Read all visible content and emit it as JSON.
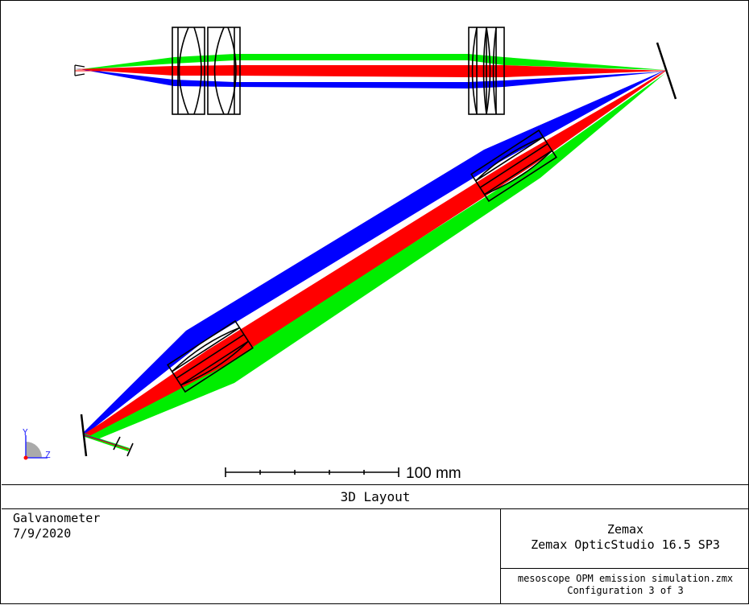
{
  "scale_bar": {
    "label": "100 mm"
  },
  "axes_triad": {
    "y_label": "Y",
    "z_label": "Z"
  },
  "colors": {
    "green_beam": "#00ee00",
    "red_beam": "#ff0000",
    "blue_beam": "#0000ff",
    "lens_outline": "#000000"
  },
  "title": "3D Layout",
  "info_left": {
    "line1": "Galvanometer",
    "line2": "7/9/2020"
  },
  "info_right": {
    "company": "Zemax",
    "product": "Zemax OpticStudio 16.5 SP3",
    "file": "mesoscope OPM emission simulation.zmx",
    "config": "Configuration 3 of 3"
  }
}
